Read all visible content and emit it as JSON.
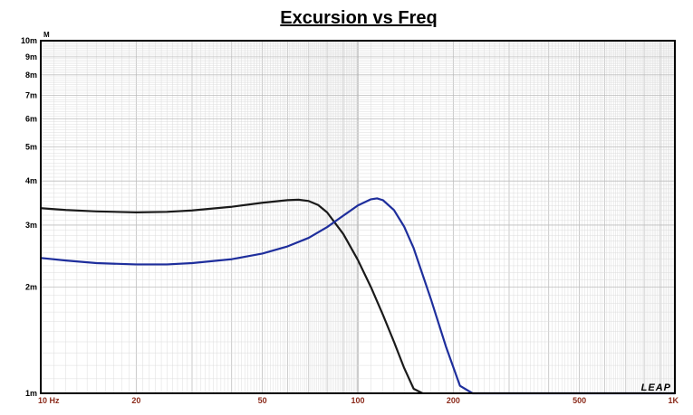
{
  "chart_data": {
    "type": "line",
    "title": "Excursion vs Freq",
    "ylabel_unit": "M",
    "xscale": "log",
    "yscale": "log",
    "xlim": [
      10,
      1000
    ],
    "ylim": [
      0.001,
      0.01
    ],
    "grid": true,
    "x_tick_labels": [
      {
        "value": 10,
        "label": "10  Hz"
      },
      {
        "value": 20,
        "label": "20"
      },
      {
        "value": 50,
        "label": "50"
      },
      {
        "value": 100,
        "label": "100"
      },
      {
        "value": 200,
        "label": "200"
      },
      {
        "value": 500,
        "label": "500"
      },
      {
        "value": 1000,
        "label": "1K"
      }
    ],
    "y_tick_labels": [
      {
        "value": 0.01,
        "label": "10m"
      },
      {
        "value": 0.009,
        "label": "9m"
      },
      {
        "value": 0.008,
        "label": "8m"
      },
      {
        "value": 0.007,
        "label": "7m"
      },
      {
        "value": 0.006,
        "label": "6m"
      },
      {
        "value": 0.005,
        "label": "5m"
      },
      {
        "value": 0.004,
        "label": "4m"
      },
      {
        "value": 0.003,
        "label": "3m"
      },
      {
        "value": 0.002,
        "label": "2m"
      },
      {
        "value": 0.001,
        "label": "1m"
      }
    ],
    "series": [
      {
        "color": "#1a1a1a",
        "x": [
          10,
          12,
          15,
          20,
          25,
          30,
          40,
          50,
          60,
          65,
          70,
          75,
          80,
          90,
          100,
          110,
          120,
          130,
          140,
          150,
          160
        ],
        "y": [
          0.00335,
          0.00331,
          0.00328,
          0.00326,
          0.00327,
          0.0033,
          0.00338,
          0.00347,
          0.00353,
          0.00354,
          0.00351,
          0.00342,
          0.00326,
          0.00283,
          0.00239,
          0.002,
          0.00167,
          0.0014,
          0.00118,
          0.00103,
          0.00095
        ]
      },
      {
        "color": "#1e2e9c",
        "x": [
          10,
          12,
          15,
          20,
          25,
          30,
          40,
          50,
          60,
          70,
          80,
          90,
          100,
          110,
          115,
          120,
          130,
          140,
          150,
          170,
          190,
          210,
          230,
          1000
        ],
        "y": [
          0.00242,
          0.00238,
          0.00234,
          0.00232,
          0.00232,
          0.00234,
          0.0024,
          0.00249,
          0.00261,
          0.00276,
          0.00296,
          0.00319,
          0.00341,
          0.00355,
          0.00357,
          0.00353,
          0.00331,
          0.00297,
          0.00258,
          0.00185,
          0.00135,
          0.00105,
          0.00097,
          0.00097
        ]
      }
    ]
  },
  "logo_text": "LEAP"
}
